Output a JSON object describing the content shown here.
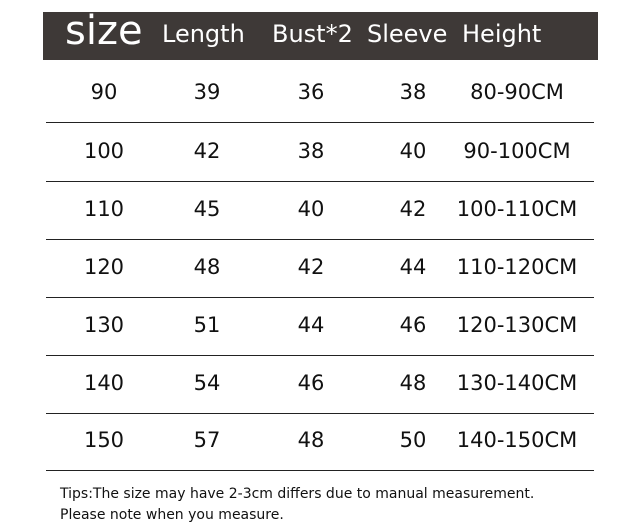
{
  "table": {
    "headers": [
      "size",
      "Length",
      "Bust*2",
      "Sleeve",
      "Height"
    ],
    "rows": [
      [
        "90",
        "39",
        "36",
        "38",
        "80-90CM"
      ],
      [
        "100",
        "42",
        "38",
        "40",
        "90-100CM"
      ],
      [
        "110",
        "45",
        "40",
        "42",
        "100-110CM"
      ],
      [
        "120",
        "48",
        "42",
        "44",
        "110-120CM"
      ],
      [
        "130",
        "51",
        "44",
        "46",
        "120-130CM"
      ],
      [
        "140",
        "54",
        "46",
        "48",
        "130-140CM"
      ],
      [
        "150",
        "57",
        "48",
        "50",
        "140-150CM"
      ]
    ]
  },
  "tips": {
    "line1": "Tips:The size may have 2-3cm differs due to manual measurement.",
    "line2": "Please note when you measure."
  },
  "colors": {
    "header_bg": "#3e3937",
    "header_text": "#ffffff"
  }
}
